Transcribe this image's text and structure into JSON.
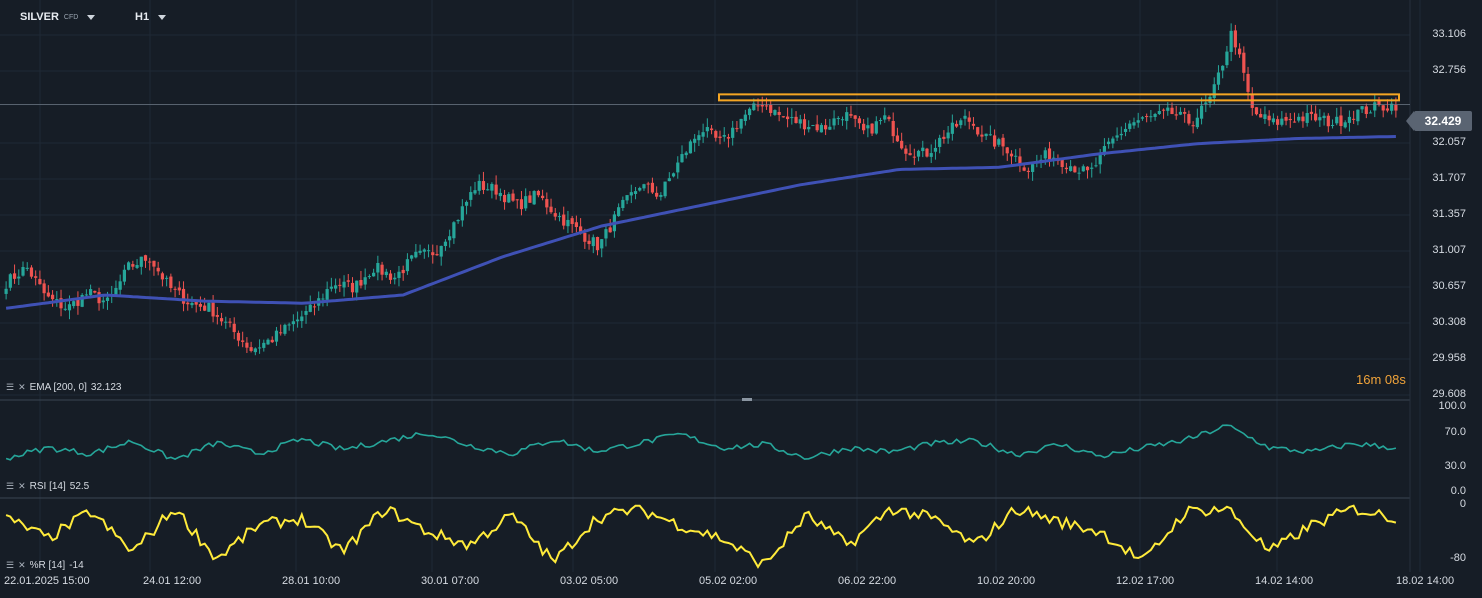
{
  "header": {
    "symbol": "SILVER",
    "symbol_sub": "CFD",
    "timeframe": "H1"
  },
  "price_badge": "32.429",
  "countdown": "16m 08s",
  "indicators": {
    "ema_label": "EMA [200, 0]",
    "ema_value": "32.123",
    "rsi_label": "RSI [14]",
    "rsi_value": "52.5",
    "wr_label": "%R [14]",
    "wr_value": "-14"
  },
  "colors": {
    "background": "#161d26",
    "up": "#26a69a",
    "down": "#ef5350",
    "ema": "#3f51b5",
    "rsi": "#26a69a",
    "williams": "#ffeb3b",
    "resistance": "#f5a623"
  },
  "chart_data": {
    "type": "candlestick",
    "price_axis_ticks": [
      "33.106",
      "32.756",
      "32.429",
      "32.057",
      "31.707",
      "31.357",
      "31.007",
      "30.657",
      "30.308",
      "29.958",
      "29.608"
    ],
    "rsi_axis_ticks": [
      "100.0",
      "70.0",
      "30.0",
      "0.0"
    ],
    "williams_axis_ticks": [
      "0",
      "-80"
    ],
    "x_labels": [
      "22.01.2025  15:00",
      "24.01  12:00",
      "28.01  10:00",
      "30.01  07:00",
      "03.02  05:00",
      "05.02  02:00",
      "06.02  22:00",
      "10.02  20:00",
      "12.02  17:00",
      "14.02  14:00",
      "18.02  14:00"
    ],
    "price_ylim": [
      29.608,
      33.106
    ],
    "resistance_level": 32.5,
    "close_anchors": [
      30.7,
      30.85,
      30.55,
      30.45,
      30.6,
      30.5,
      30.85,
      30.95,
      30.65,
      30.5,
      30.45,
      30.25,
      30.05,
      30.15,
      30.3,
      30.45,
      30.7,
      30.65,
      30.85,
      30.75,
      30.95,
      31.0,
      31.3,
      31.65,
      31.6,
      31.45,
      31.55,
      31.35,
      31.2,
      31.05,
      31.4,
      31.65,
      31.55,
      31.9,
      32.2,
      32.05,
      32.3,
      32.45,
      32.3,
      32.25,
      32.2,
      32.35,
      32.15,
      32.3,
      32.0,
      31.95,
      32.15,
      32.3,
      32.1,
      32.0,
      31.8,
      31.95,
      31.85,
      31.75,
      32.05,
      32.25,
      32.3,
      32.35,
      32.25,
      32.5,
      33.15,
      32.35,
      32.25,
      32.3,
      32.3,
      32.25,
      32.35,
      32.4,
      32.43
    ],
    "ema_anchors": [
      30.45,
      30.58,
      30.52,
      30.5,
      30.58,
      30.95,
      31.25,
      31.45,
      31.65,
      31.8,
      31.82,
      31.95,
      32.05,
      32.1,
      32.12
    ],
    "rsi_anchors": [
      40,
      52,
      45,
      60,
      38,
      58,
      45,
      62,
      50,
      60,
      70,
      55,
      45,
      62,
      48,
      57,
      68,
      52,
      56,
      40,
      52,
      47,
      57,
      60,
      44,
      56,
      42,
      52,
      61,
      78,
      52,
      47,
      57,
      52
    ],
    "williams_anchors": [
      -20,
      -50,
      -10,
      -70,
      -5,
      -80,
      -30,
      -20,
      -70,
      -5,
      -40,
      -60,
      -15,
      -85,
      -20,
      -5,
      -30,
      -50,
      -90,
      -15,
      -60,
      -5,
      -20,
      -60,
      -5,
      -25,
      -40,
      -85,
      -10,
      -5,
      -70,
      -30,
      -5,
      -20
    ]
  }
}
